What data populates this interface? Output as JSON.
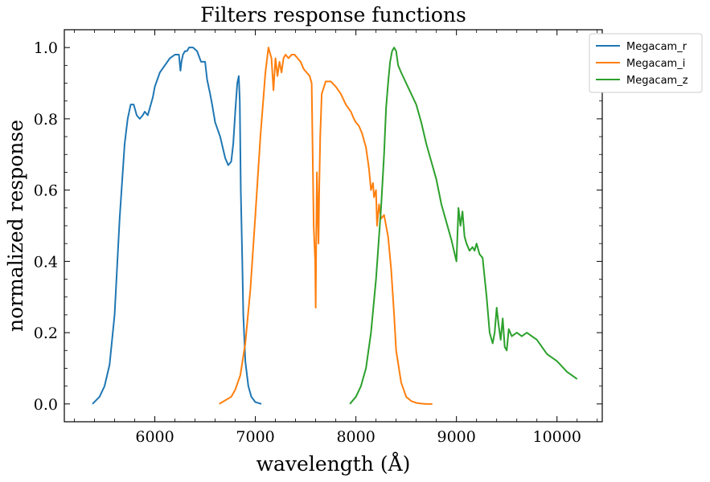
{
  "chart_data": {
    "type": "line",
    "title": "Filters response functions",
    "xlabel": "wavelength (Å)",
    "ylabel": "normalized response",
    "xlim": [
      5100,
      10450
    ],
    "ylim": [
      -0.05,
      1.05
    ],
    "x_ticks": [
      6000,
      7000,
      8000,
      9000,
      10000
    ],
    "x_tick_labels": [
      "6000",
      "7000",
      "8000",
      "9000",
      "10000"
    ],
    "y_ticks": [
      0.0,
      0.2,
      0.4,
      0.6,
      0.8,
      1.0
    ],
    "y_tick_labels": [
      "0.0",
      "0.2",
      "0.4",
      "0.6",
      "0.8",
      "1.0"
    ],
    "grid": false,
    "legend_position": "top-right",
    "series": [
      {
        "name": "Megacam_r",
        "color": "#1f77b4",
        "x": [
          5380,
          5450,
          5500,
          5550,
          5600,
          5650,
          5700,
          5730,
          5760,
          5790,
          5820,
          5850,
          5880,
          5900,
          5930,
          5950,
          5980,
          6000,
          6050,
          6100,
          6150,
          6200,
          6240,
          6255,
          6265,
          6280,
          6300,
          6320,
          6340,
          6380,
          6420,
          6460,
          6500,
          6520,
          6550,
          6570,
          6600,
          6650,
          6700,
          6730,
          6760,
          6780,
          6800,
          6820,
          6835,
          6845,
          6855,
          6870,
          6880,
          6900,
          6930,
          6960,
          7000,
          7060
        ],
        "y": [
          0.0,
          0.02,
          0.05,
          0.11,
          0.25,
          0.52,
          0.73,
          0.8,
          0.84,
          0.84,
          0.81,
          0.8,
          0.81,
          0.82,
          0.81,
          0.83,
          0.86,
          0.89,
          0.93,
          0.95,
          0.97,
          0.98,
          0.98,
          0.935,
          0.96,
          0.98,
          0.99,
          0.99,
          1.0,
          1.0,
          0.99,
          0.96,
          0.96,
          0.91,
          0.87,
          0.84,
          0.79,
          0.75,
          0.69,
          0.67,
          0.68,
          0.73,
          0.82,
          0.9,
          0.92,
          0.85,
          0.6,
          0.4,
          0.25,
          0.12,
          0.05,
          0.02,
          0.005,
          0.0
        ]
      },
      {
        "name": "Megacam_i",
        "color": "#ff7f0e",
        "x": [
          6640,
          6700,
          6760,
          6800,
          6850,
          6900,
          6950,
          7000,
          7050,
          7100,
          7130,
          7160,
          7180,
          7200,
          7220,
          7240,
          7260,
          7280,
          7300,
          7330,
          7360,
          7390,
          7420,
          7450,
          7480,
          7510,
          7540,
          7560,
          7580,
          7595,
          7600,
          7605,
          7612,
          7620,
          7628,
          7635,
          7645,
          7660,
          7700,
          7750,
          7800,
          7850,
          7900,
          7950,
          7980,
          8000,
          8030,
          8060,
          8100,
          8130,
          8150,
          8170,
          8180,
          8200,
          8210,
          8230,
          8250,
          8280,
          8300,
          8320,
          8350,
          8380,
          8400,
          8450,
          8500,
          8550,
          8600,
          8650,
          8700,
          8760
        ],
        "y": [
          0.0,
          0.01,
          0.02,
          0.04,
          0.08,
          0.17,
          0.32,
          0.53,
          0.75,
          0.93,
          1.0,
          0.97,
          0.88,
          0.97,
          0.92,
          0.96,
          0.93,
          0.97,
          0.98,
          0.97,
          0.98,
          0.98,
          0.97,
          0.96,
          0.94,
          0.93,
          0.92,
          0.9,
          0.5,
          0.4,
          0.27,
          0.45,
          0.65,
          0.55,
          0.45,
          0.6,
          0.75,
          0.87,
          0.905,
          0.905,
          0.89,
          0.87,
          0.84,
          0.82,
          0.8,
          0.79,
          0.78,
          0.76,
          0.72,
          0.66,
          0.6,
          0.62,
          0.58,
          0.6,
          0.5,
          0.56,
          0.52,
          0.53,
          0.5,
          0.47,
          0.38,
          0.25,
          0.15,
          0.06,
          0.02,
          0.008,
          0.003,
          0.001,
          0.0,
          0.0
        ]
      },
      {
        "name": "Megacam_z",
        "color": "#2ca02c",
        "x": [
          7940,
          8000,
          8050,
          8100,
          8150,
          8200,
          8250,
          8280,
          8300,
          8320,
          8340,
          8360,
          8380,
          8400,
          8420,
          8450,
          8500,
          8550,
          8600,
          8650,
          8700,
          8750,
          8800,
          8850,
          8900,
          8950,
          9000,
          9020,
          9040,
          9060,
          9080,
          9100,
          9130,
          9160,
          9180,
          9200,
          9230,
          9260,
          9300,
          9330,
          9360,
          9380,
          9400,
          9420,
          9440,
          9460,
          9480,
          9500,
          9520,
          9550,
          9600,
          9650,
          9700,
          9750,
          9800,
          9850,
          9900,
          10000,
          10100,
          10200
        ],
        "y": [
          0.0,
          0.02,
          0.05,
          0.1,
          0.2,
          0.35,
          0.55,
          0.7,
          0.83,
          0.9,
          0.96,
          0.99,
          1.0,
          0.99,
          0.95,
          0.93,
          0.9,
          0.87,
          0.84,
          0.79,
          0.73,
          0.68,
          0.63,
          0.56,
          0.51,
          0.46,
          0.4,
          0.55,
          0.5,
          0.54,
          0.47,
          0.45,
          0.43,
          0.44,
          0.43,
          0.45,
          0.42,
          0.41,
          0.3,
          0.2,
          0.17,
          0.2,
          0.27,
          0.22,
          0.18,
          0.24,
          0.16,
          0.15,
          0.21,
          0.19,
          0.2,
          0.19,
          0.2,
          0.19,
          0.18,
          0.16,
          0.14,
          0.12,
          0.09,
          0.07
        ]
      }
    ]
  }
}
